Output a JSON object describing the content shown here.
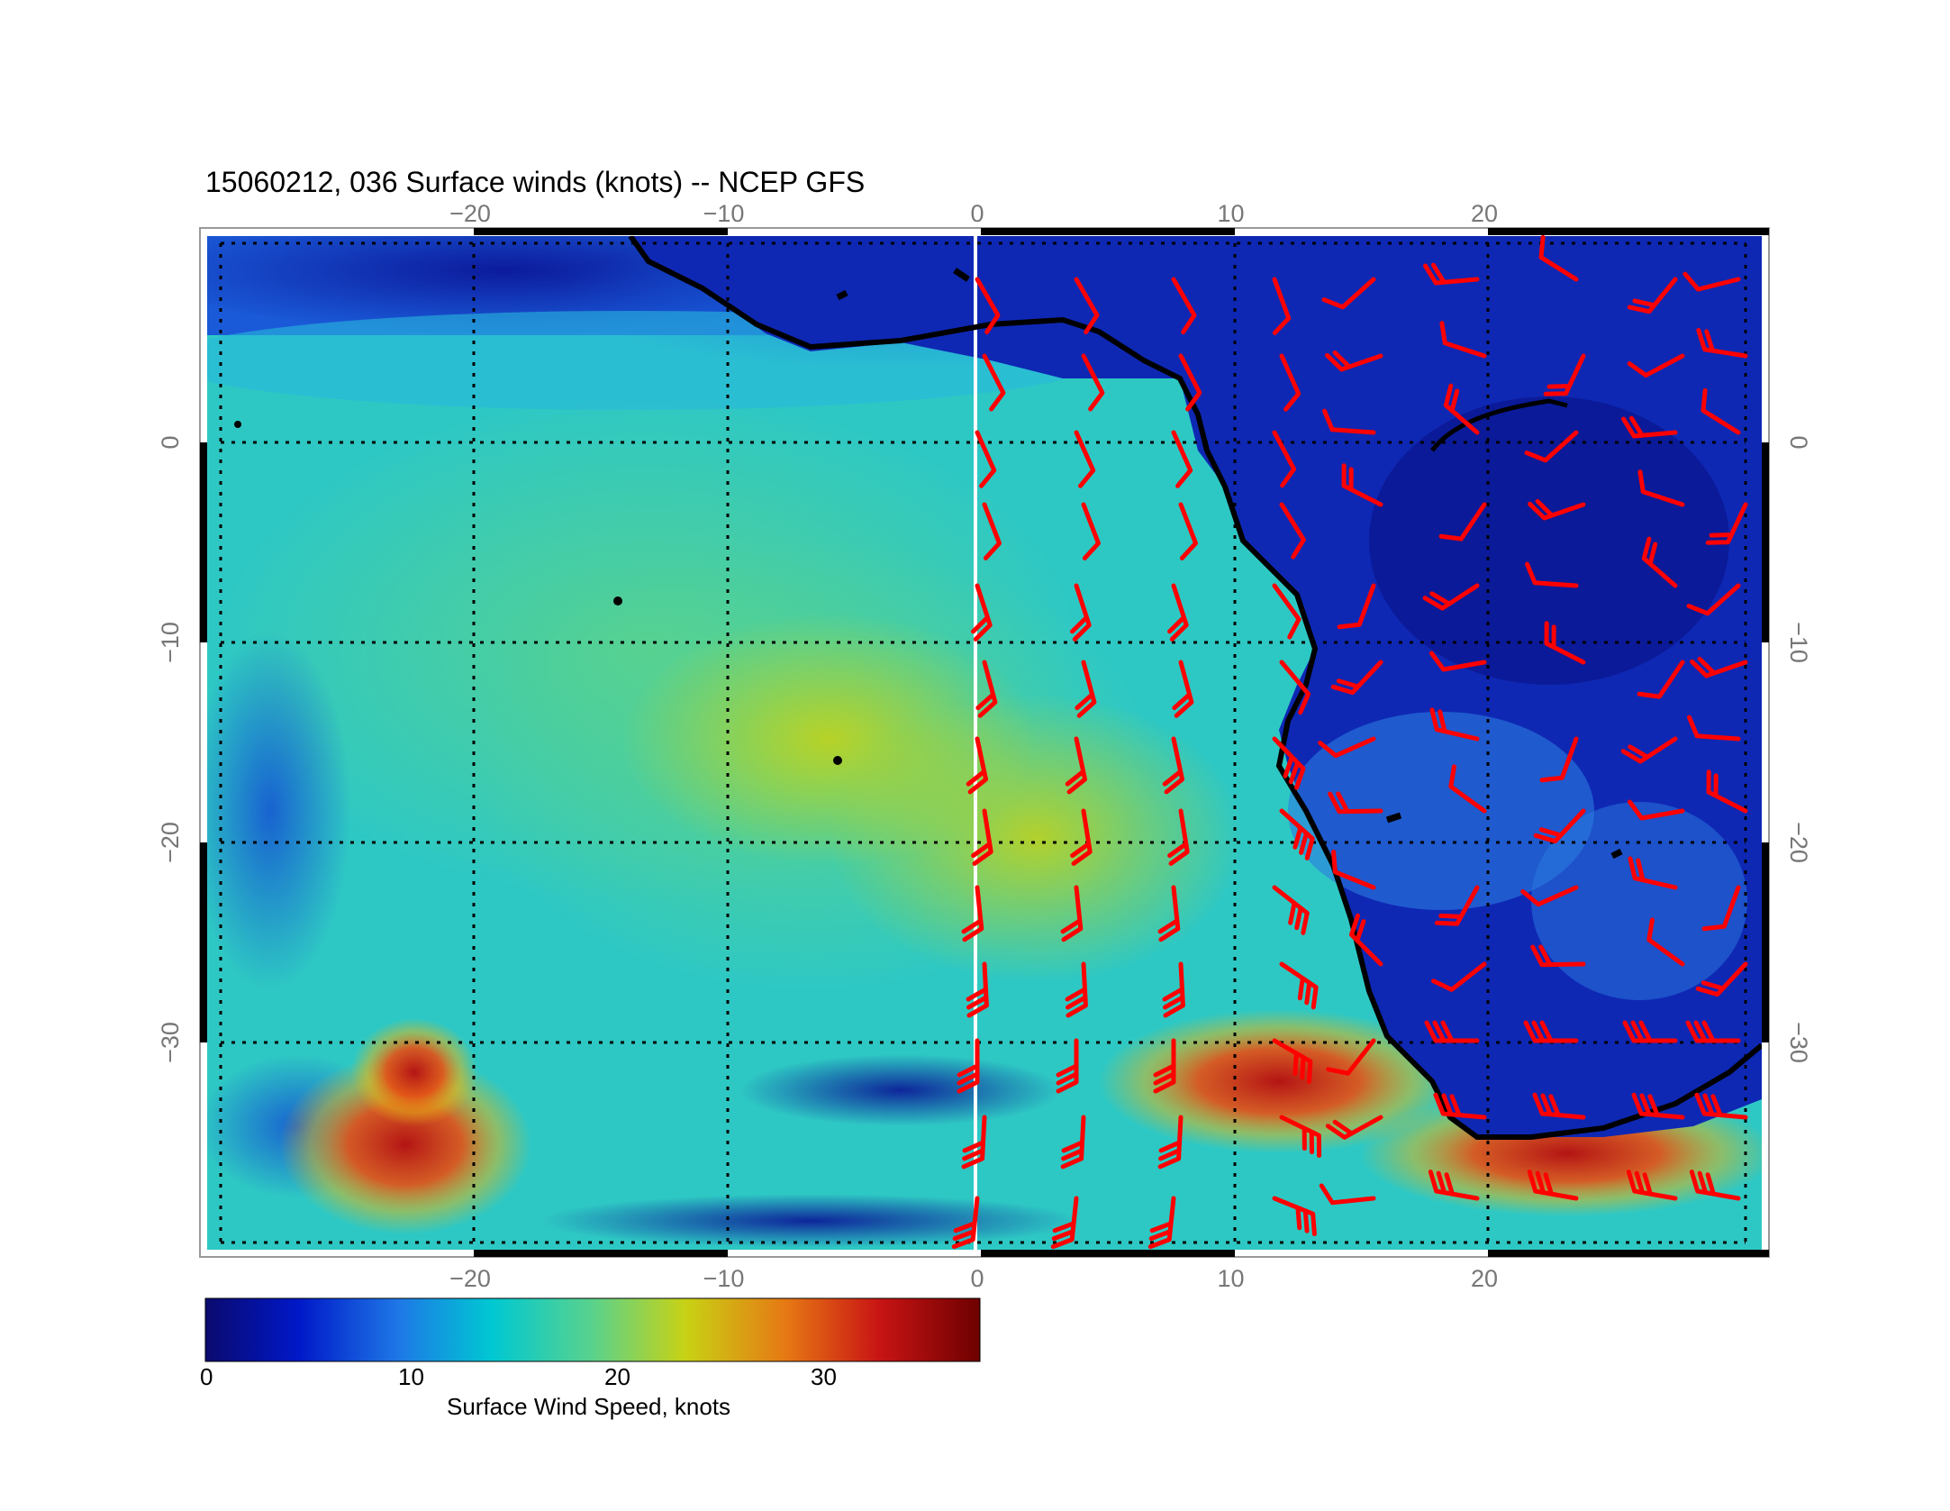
{
  "title": "15060212, 036 Surface winds (knots) -- NCEP GFS",
  "map": {
    "lon_range": [
      -30,
      31
    ],
    "lat_range": [
      -40,
      11
    ],
    "lon_ticks": [
      "−20",
      "−10",
      "0",
      "10",
      "20"
    ],
    "lon_tick_values": [
      -20,
      -10,
      0,
      10,
      20
    ],
    "lat_ticks": [
      "0",
      "−10",
      "−20",
      "−30"
    ],
    "lat_tick_values": [
      0,
      -10,
      -20,
      -30
    ],
    "gridlines": "dotted",
    "field": "surface wind speed",
    "barb_color": "#ff0000",
    "coastline_color": "#000000",
    "meridian_line_color": "#ffffff"
  },
  "colorbar": {
    "title": "Surface Wind Speed, knots",
    "ticks": [
      "0",
      "10",
      "20",
      "30"
    ],
    "tick_values": [
      0,
      10,
      20,
      30
    ],
    "range": [
      0,
      38
    ],
    "colors": [
      "#0a0a6e",
      "#0018c8",
      "#1e78e6",
      "#00c8d2",
      "#5ad28c",
      "#c8d214",
      "#e67814",
      "#c81414",
      "#6e0000"
    ]
  }
}
